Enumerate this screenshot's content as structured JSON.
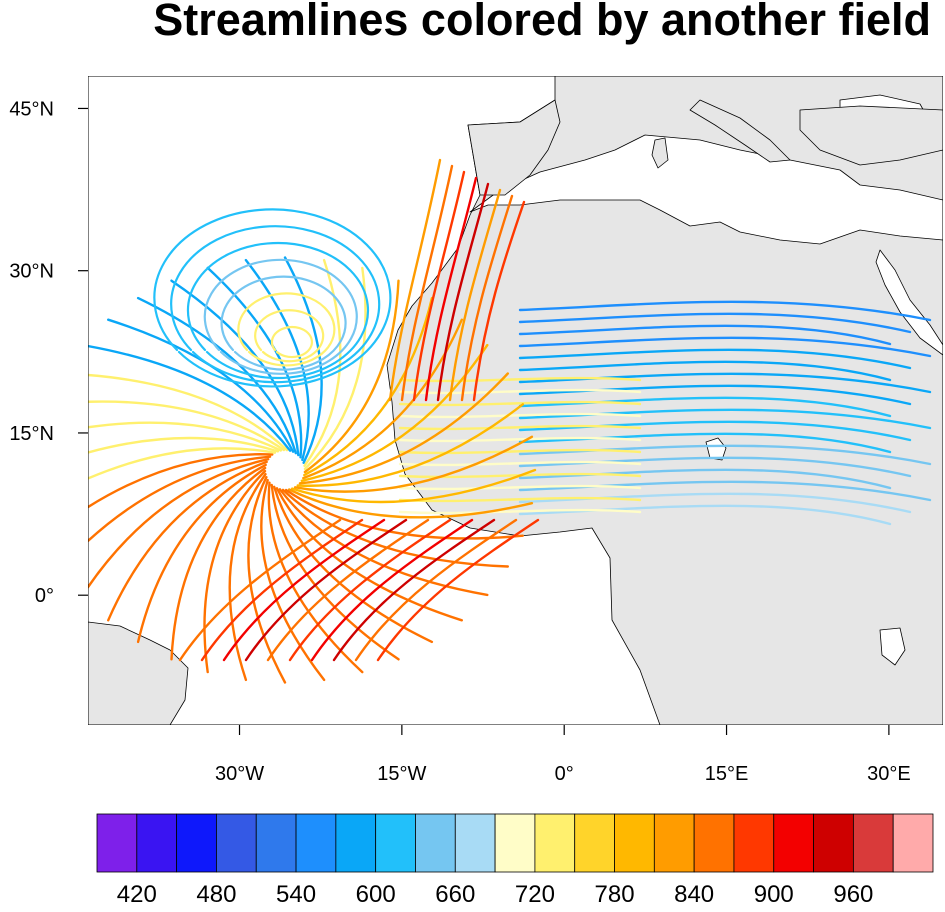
{
  "title": "Streamlines colored by another field",
  "map": {
    "projection": "cylindrical-equidistant",
    "lon_range": [
      -44,
      35
    ],
    "lat_range": [
      -12,
      48
    ],
    "land_color": "#e6e6e6",
    "ocean_color": "#ffffff",
    "lon_ticks": [
      {
        "value": -30,
        "label": "30°W"
      },
      {
        "value": -15,
        "label": "15°W"
      },
      {
        "value": 0,
        "label": "0°"
      },
      {
        "value": 15,
        "label": "15°E"
      },
      {
        "value": 30,
        "label": "30°E"
      }
    ],
    "lat_ticks": [
      {
        "value": 45,
        "label": "45°N"
      },
      {
        "value": 30,
        "label": "30°N"
      },
      {
        "value": 15,
        "label": "15°N"
      },
      {
        "value": 0,
        "label": "0°"
      }
    ]
  },
  "colorbar": {
    "colors": [
      "#7e20ea",
      "#3a14f2",
      "#0e18fb",
      "#3459e5",
      "#2f79ec",
      "#1e8ffd",
      "#0aa7f7",
      "#22c0fa",
      "#75c6f1",
      "#a8dbf5",
      "#fffdc8",
      "#fff06e",
      "#ffd42a",
      "#ffb800",
      "#ff9c00",
      "#ff7200",
      "#ff3800",
      "#f30000",
      "#ce0000",
      "#d93a3a",
      "#ffaaaa"
    ],
    "labels": [
      "420",
      "480",
      "540",
      "600",
      "660",
      "720",
      "780",
      "840",
      "900",
      "960"
    ]
  }
}
